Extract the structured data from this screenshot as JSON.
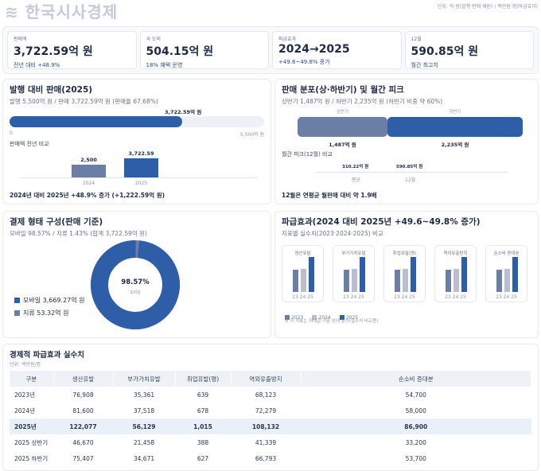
{
  "unit_note": "단위: 억 원(발행·판매·재원) / 백만원·명(파급효과)",
  "colors": {
    "primary": "#2f5ea8",
    "secondary": "#6a7ea6",
    "light": "#b9c0cc",
    "track": "#edf0f5"
  },
  "kpis": [
    {
      "label": "판매액",
      "value": "3,722.59억 원",
      "sub": "전년 대비 +48.9%"
    },
    {
      "label": "국·도비",
      "value": "504.15억 원",
      "sub": "18% 혜택 운영"
    },
    {
      "label": "파급효과",
      "value": "2024→2025",
      "sub": "+49.6~49.8% 증가"
    },
    {
      "label": "12월",
      "value": "590.85억 원",
      "sub": "월간 최고치"
    }
  ],
  "issue_panel": {
    "title": "발행 대비 판매(2025)",
    "subtitle": "발행 5,500억 원 / 판매 3,722.59억 원 (판매율 67.68%)",
    "progress": {
      "value": 3722.59,
      "max": 5500,
      "value_label": "3,722.59억 원",
      "min_label": "0",
      "max_label": "5,500억 원"
    },
    "compare_title": "판매액 전년 비교",
    "bars": [
      {
        "year": "2024",
        "value": 2500,
        "label": "2,500"
      },
      {
        "year": "2025",
        "value": 3722.59,
        "label": "3,722.59"
      }
    ],
    "footer": "2024년 대비 2025년 +48.9% 증가 (+1,222.59억 원)"
  },
  "dist_panel": {
    "title": "판매 분포(상·하반기) 및 월간 피크",
    "subtitle": "상반기 1,487억 원 / 하반기 2,235억 원 (하반기 비중 약 60%)",
    "halves": [
      {
        "name": "상반기",
        "value": 1487,
        "label": "1,487억 원"
      },
      {
        "name": "하반기",
        "value": 2235,
        "label": "2,235억 원"
      }
    ],
    "peak_title": "월간 피크(12월) 비교",
    "peak": [
      {
        "name": "평균",
        "label": "310.22억 원"
      },
      {
        "name": "12월",
        "label": "590.85억 원"
      }
    ],
    "footer": "12월은 연평균 월판매 대비 약 1.9배"
  },
  "pay_panel": {
    "title": "결제 형태 구성(판매 기준)",
    "subtitle": "모바일 98.57% / 지류 1.43% (합계 3,722.59억 원)",
    "center_value": "98.57%",
    "center_label": "모바일",
    "slices": [
      {
        "name": "모바일",
        "value": 98.57,
        "legend": "모바일 3,669.27억 원"
      },
      {
        "name": "지류",
        "value": 1.43,
        "legend": "지류 53.32억 원"
      }
    ]
  },
  "effect_panel": {
    "title": "파급효과(2024 대비 2025년 +49.6~49.8% 증가)",
    "subtitle": "지표별 실수치(2023·2024·2025) 비교",
    "year_ticks": "23 24 25",
    "legend": [
      "2023",
      "2024",
      "2025"
    ],
    "note": "※ 각 지표는 최대값 기준 상대 높이(실수치 비교용)"
  },
  "table": {
    "title": "경제적 파급효과 실수치",
    "unit": "단위: 백만원/명",
    "headers": [
      "구분",
      "생산유발",
      "부가가치유발",
      "취업유발(명)",
      "역외유출방지",
      "순소비 증대분"
    ],
    "rows": [
      [
        "2023년",
        "76,908",
        "35,361",
        "639",
        "68,123",
        "54,700"
      ],
      [
        "2024년",
        "81,600",
        "37,518",
        "678",
        "72,279",
        "58,000"
      ],
      [
        "2025년",
        "122,077",
        "56,129",
        "1,015",
        "108,132",
        "86,900"
      ],
      [
        "2025 상반기",
        "46,670",
        "21,458",
        "388",
        "41,339",
        "33,200"
      ],
      [
        "2025 하반기",
        "75,407",
        "34,671",
        "627",
        "66,793",
        "53,700"
      ]
    ]
  },
  "watermark": "한국시사경제"
}
